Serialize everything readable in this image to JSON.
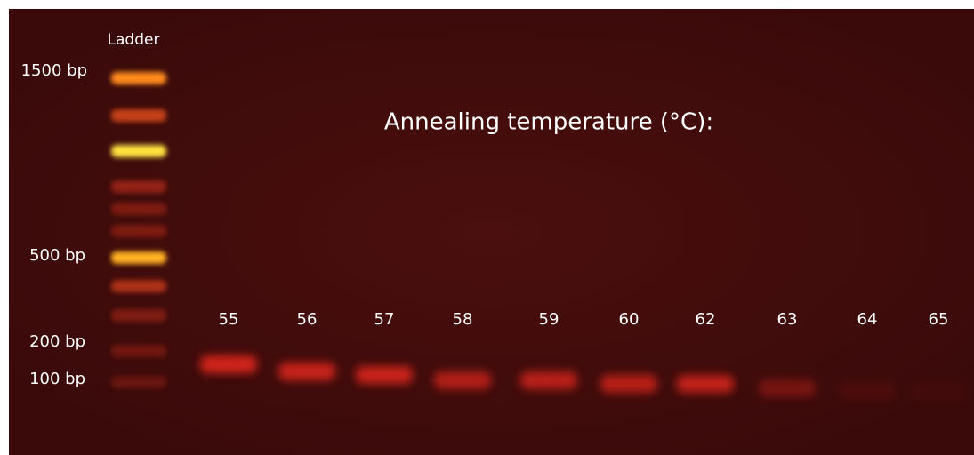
{
  "ladder_label": "Ladder",
  "size_markers": [
    "1500 bp",
    "500 bp",
    "200 bp",
    "100 bp"
  ],
  "title": "Annealing temperature (°C):",
  "lanes": [
    "55",
    "56",
    "57",
    "58",
    "59",
    "60",
    "62",
    "63",
    "64",
    "65"
  ]
}
